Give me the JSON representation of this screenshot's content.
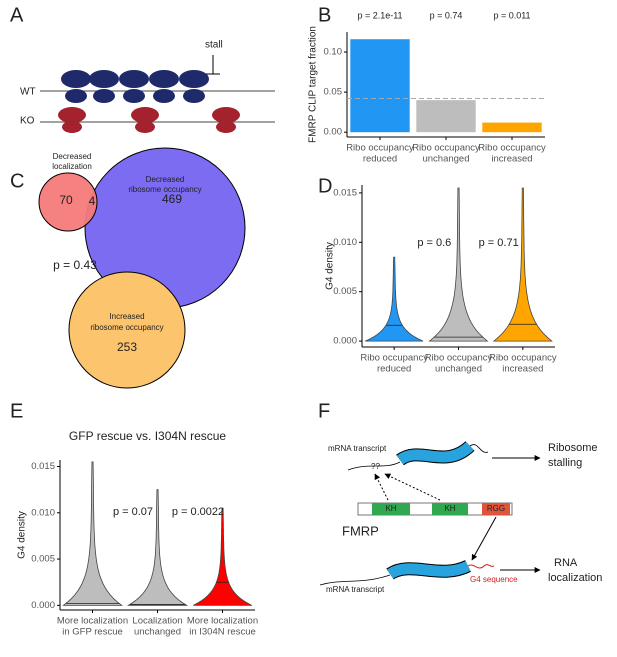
{
  "panel_labels": [
    "A",
    "B",
    "C",
    "D",
    "E",
    "F"
  ],
  "diagram_a": {
    "wt": "WT",
    "ko": "KO",
    "stall": "stall"
  },
  "venn": {
    "decreased_localization": [
      "Decreased",
      "localization"
    ],
    "decreased_ribosome": [
      "Decreased",
      "ribosome occupancy"
    ],
    "increased_ribosome": [
      "Increased",
      "ribosome occupancy"
    ],
    "only_localization": "70",
    "overlap": "4",
    "only_ribosome": "469",
    "increased_count": "253",
    "p_value": "p = 0.43"
  },
  "diagram_f": {
    "transcript_top": "mRNA transcript",
    "unknown": "??",
    "stalling": [
      "Ribosome",
      "stalling"
    ],
    "domains": [
      "KH",
      "KH",
      "RGG"
    ],
    "protein": "FMRP",
    "transcript_bottom": "mRNA transcript",
    "g4": "G4 sequence",
    "localization": [
      "RNA",
      "localization"
    ]
  },
  "chart_data": [
    {
      "type": "bar",
      "ylabel": "FMRP CLIP target fraction",
      "categories": [
        [
          "Ribo occupancy",
          "reduced"
        ],
        [
          "Ribo occupancy",
          "unchanged"
        ],
        [
          "Ribo occupancy",
          "increased"
        ]
      ],
      "values": [
        0.116,
        0.04,
        0.012
      ],
      "colors": [
        "#2196f3",
        "#bdbdbd",
        "#ffa500"
      ],
      "reference_line": 0.042,
      "annotations": [
        "p = 2.1e-11",
        "p = 0.74",
        "p = 0.011"
      ],
      "ylim": [
        -0.006,
        0.125
      ],
      "yticks": [
        {
          "value": 0,
          "label": "0.00"
        },
        0.05,
        {
          "value": 0.1,
          "label": "0.10"
        }
      ]
    },
    {
      "type": "violin",
      "ylabel": "G4 density",
      "categories": [
        [
          "Ribo occupancy",
          "reduced"
        ],
        [
          "Ribo occupancy",
          "unchanged"
        ],
        [
          "Ribo occupancy",
          "increased"
        ]
      ],
      "medians": [
        0.0016,
        0.0004,
        0.0017
      ],
      "maxima": [
        0.0085,
        0.0155,
        0.0155
      ],
      "colors": [
        "#2196f3",
        "#bdbdbd",
        "#ffa500"
      ],
      "annotations": [
        "p = 0.6",
        "p = 0.71"
      ],
      "ylim": [
        -0.0006,
        0.0158
      ],
      "yticks": [
        {
          "value": 0,
          "label": "0.000"
        },
        0.005,
        {
          "value": 0.01,
          "label": "0.010"
        },
        0.015
      ]
    },
    {
      "type": "violin",
      "title": "GFP rescue vs. I304N rescue",
      "ylabel": "G4 density",
      "categories": [
        [
          "More localization",
          "in GFP rescue"
        ],
        [
          "Localization",
          "unchanged"
        ],
        [
          "More localization",
          "in I304N rescue"
        ]
      ],
      "medians": [
        0.0002,
        0.0001,
        0.0025
      ],
      "maxima": [
        0.0155,
        0.0125,
        0.0105
      ],
      "colors": [
        "#bdbdbd",
        "#bdbdbd",
        "#ff0000"
      ],
      "annotations": [
        "p = 0.07",
        "p = 0.0022"
      ],
      "ylim": [
        -0.0005,
        0.0157
      ],
      "yticks": [
        {
          "value": 0,
          "label": "0.000"
        },
        0.005,
        {
          "value": 0.01,
          "label": "0.010"
        },
        0.015
      ]
    }
  ]
}
